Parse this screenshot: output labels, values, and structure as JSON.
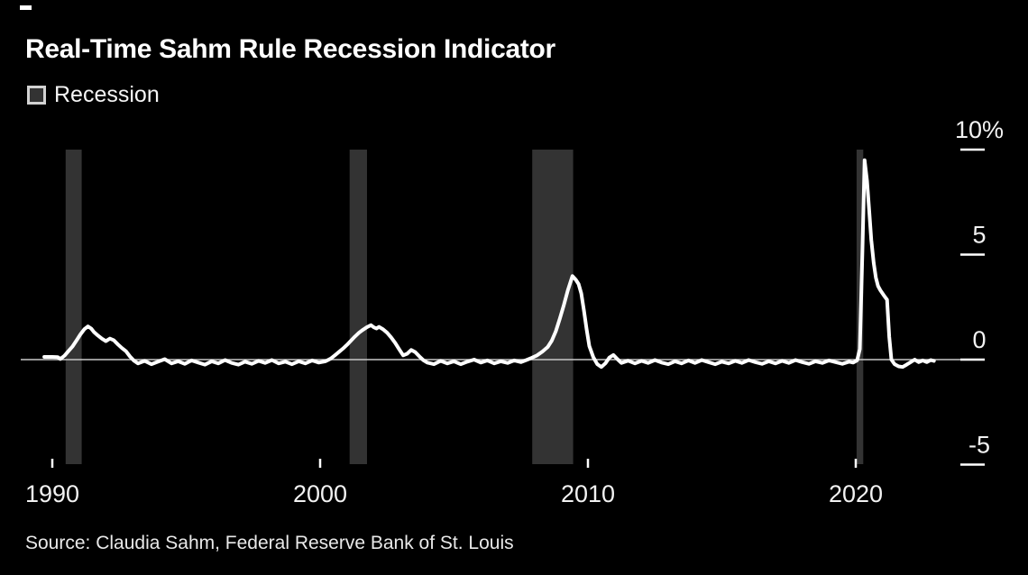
{
  "title": "Real-Time Sahm Rule Recession Indicator",
  "legend": {
    "label": "Recession"
  },
  "source": "Source: Claudia Sahm, Federal Reserve Bank of St. Louis",
  "colors": {
    "background": "#000000",
    "line": "#ffffff",
    "recession_band": "#333333",
    "zero_line": "#c8c8c8",
    "tick": "#ffffff",
    "tick_label": "#f2f2f2",
    "title": "#ffffff",
    "source_text": "#e9e9e9",
    "legend_swatch_border": "#d2d2d2"
  },
  "chart_data": {
    "type": "line",
    "title": "Real-Time Sahm Rule Recession Indicator",
    "xlabel": "",
    "ylabel": "%",
    "legend_entries": [
      "Recession"
    ],
    "x_axis": {
      "range": [
        1988.8,
        2024.9
      ],
      "ticks": [
        {
          "value": 1990,
          "label": "1990"
        },
        {
          "value": 2000,
          "label": "2000"
        },
        {
          "value": 2010,
          "label": "2010"
        },
        {
          "value": 2020,
          "label": "2020"
        }
      ]
    },
    "y_axis": {
      "range": [
        -6.6,
        10
      ],
      "unit": "%",
      "ticks": [
        {
          "value": 10,
          "label": "10%"
        },
        {
          "value": 5,
          "label": "5"
        },
        {
          "value": 0,
          "label": "0"
        },
        {
          "value": -5,
          "label": "-5"
        }
      ]
    },
    "zero_line": true,
    "recession_bands": [
      {
        "start": 1990.5,
        "end": 1991.1
      },
      {
        "start": 2001.1,
        "end": 2001.75
      },
      {
        "start": 2007.92,
        "end": 2009.45
      },
      {
        "start": 2020.03,
        "end": 2020.28
      }
    ],
    "series": [
      {
        "name": "Real-time Sahm rule recession indicator",
        "color": "#ffffff",
        "points": [
          [
            1989.7,
            0.13
          ],
          [
            1990.0,
            0.13
          ],
          [
            1990.2,
            0.12
          ],
          [
            1990.3,
            0.03
          ],
          [
            1990.45,
            0.18
          ],
          [
            1990.6,
            0.4
          ],
          [
            1990.75,
            0.62
          ],
          [
            1990.9,
            0.9
          ],
          [
            1991.05,
            1.2
          ],
          [
            1991.2,
            1.45
          ],
          [
            1991.33,
            1.58
          ],
          [
            1991.45,
            1.48
          ],
          [
            1991.55,
            1.32
          ],
          [
            1991.7,
            1.15
          ],
          [
            1991.85,
            1.0
          ],
          [
            1992.0,
            0.88
          ],
          [
            1992.15,
            1.0
          ],
          [
            1992.3,
            0.92
          ],
          [
            1992.45,
            0.72
          ],
          [
            1992.6,
            0.55
          ],
          [
            1992.75,
            0.4
          ],
          [
            1992.9,
            0.15
          ],
          [
            1993.05,
            -0.05
          ],
          [
            1993.2,
            -0.18
          ],
          [
            1993.45,
            -0.06
          ],
          [
            1993.7,
            -0.22
          ],
          [
            1993.95,
            -0.1
          ],
          [
            1994.2,
            0.02
          ],
          [
            1994.45,
            -0.18
          ],
          [
            1994.7,
            -0.08
          ],
          [
            1994.95,
            -0.2
          ],
          [
            1995.2,
            -0.04
          ],
          [
            1995.45,
            -0.14
          ],
          [
            1995.7,
            -0.24
          ],
          [
            1995.95,
            -0.08
          ],
          [
            1996.2,
            -0.18
          ],
          [
            1996.45,
            -0.02
          ],
          [
            1996.7,
            -0.16
          ],
          [
            1996.95,
            -0.24
          ],
          [
            1997.2,
            -0.1
          ],
          [
            1997.45,
            -0.2
          ],
          [
            1997.7,
            -0.06
          ],
          [
            1997.95,
            -0.16
          ],
          [
            1998.2,
            -0.02
          ],
          [
            1998.45,
            -0.18
          ],
          [
            1998.7,
            -0.1
          ],
          [
            1998.95,
            -0.22
          ],
          [
            1999.2,
            -0.08
          ],
          [
            1999.45,
            -0.18
          ],
          [
            1999.7,
            -0.04
          ],
          [
            1999.95,
            -0.14
          ],
          [
            2000.2,
            -0.08
          ],
          [
            2000.4,
            0.05
          ],
          [
            2000.55,
            0.2
          ],
          [
            2000.7,
            0.36
          ],
          [
            2000.85,
            0.52
          ],
          [
            2001.0,
            0.7
          ],
          [
            2001.15,
            0.9
          ],
          [
            2001.3,
            1.1
          ],
          [
            2001.45,
            1.28
          ],
          [
            2001.6,
            1.42
          ],
          [
            2001.75,
            1.55
          ],
          [
            2001.9,
            1.64
          ],
          [
            2002.0,
            1.54
          ],
          [
            2002.1,
            1.48
          ],
          [
            2002.2,
            1.56
          ],
          [
            2002.35,
            1.44
          ],
          [
            2002.5,
            1.28
          ],
          [
            2002.65,
            1.06
          ],
          [
            2002.8,
            0.8
          ],
          [
            2002.95,
            0.5
          ],
          [
            2003.1,
            0.2
          ],
          [
            2003.25,
            0.28
          ],
          [
            2003.4,
            0.46
          ],
          [
            2003.55,
            0.36
          ],
          [
            2003.7,
            0.16
          ],
          [
            2003.85,
            -0.02
          ],
          [
            2004.0,
            -0.14
          ],
          [
            2004.25,
            -0.22
          ],
          [
            2004.5,
            -0.06
          ],
          [
            2004.75,
            -0.18
          ],
          [
            2005.0,
            -0.08
          ],
          [
            2005.25,
            -0.22
          ],
          [
            2005.5,
            -0.1
          ],
          [
            2005.75,
            0.0
          ],
          [
            2006.0,
            -0.14
          ],
          [
            2006.25,
            -0.04
          ],
          [
            2006.5,
            -0.18
          ],
          [
            2006.75,
            -0.08
          ],
          [
            2007.0,
            -0.16
          ],
          [
            2007.25,
            -0.04
          ],
          [
            2007.5,
            -0.12
          ],
          [
            2007.7,
            -0.02
          ],
          [
            2007.9,
            0.08
          ],
          [
            2008.1,
            0.2
          ],
          [
            2008.3,
            0.38
          ],
          [
            2008.5,
            0.6
          ],
          [
            2008.65,
            0.9
          ],
          [
            2008.8,
            1.35
          ],
          [
            2008.95,
            1.95
          ],
          [
            2009.1,
            2.6
          ],
          [
            2009.25,
            3.3
          ],
          [
            2009.42,
            3.98
          ],
          [
            2009.55,
            3.8
          ],
          [
            2009.65,
            3.6
          ],
          [
            2009.75,
            3.15
          ],
          [
            2009.85,
            2.35
          ],
          [
            2009.95,
            1.45
          ],
          [
            2010.05,
            0.65
          ],
          [
            2010.2,
            0.12
          ],
          [
            2010.35,
            -0.22
          ],
          [
            2010.5,
            -0.35
          ],
          [
            2010.65,
            -0.18
          ],
          [
            2010.8,
            0.1
          ],
          [
            2010.95,
            0.22
          ],
          [
            2011.1,
            0.02
          ],
          [
            2011.25,
            -0.16
          ],
          [
            2011.5,
            -0.05
          ],
          [
            2011.75,
            -0.18
          ],
          [
            2012.0,
            -0.06
          ],
          [
            2012.25,
            -0.16
          ],
          [
            2012.5,
            -0.02
          ],
          [
            2012.75,
            -0.14
          ],
          [
            2013.0,
            -0.22
          ],
          [
            2013.25,
            -0.08
          ],
          [
            2013.5,
            -0.18
          ],
          [
            2013.75,
            -0.04
          ],
          [
            2014.0,
            -0.16
          ],
          [
            2014.25,
            -0.02
          ],
          [
            2014.5,
            -0.12
          ],
          [
            2014.75,
            -0.22
          ],
          [
            2015.0,
            -0.1
          ],
          [
            2015.25,
            -0.18
          ],
          [
            2015.5,
            -0.06
          ],
          [
            2015.75,
            -0.16
          ],
          [
            2016.0,
            -0.02
          ],
          [
            2016.25,
            -0.12
          ],
          [
            2016.5,
            -0.2
          ],
          [
            2016.75,
            -0.08
          ],
          [
            2017.0,
            -0.18
          ],
          [
            2017.25,
            -0.06
          ],
          [
            2017.5,
            -0.16
          ],
          [
            2017.75,
            -0.02
          ],
          [
            2018.0,
            -0.12
          ],
          [
            2018.25,
            -0.2
          ],
          [
            2018.5,
            -0.08
          ],
          [
            2018.75,
            -0.16
          ],
          [
            2019.0,
            -0.04
          ],
          [
            2019.25,
            -0.12
          ],
          [
            2019.5,
            -0.2
          ],
          [
            2019.75,
            -0.1
          ],
          [
            2019.9,
            -0.14
          ],
          [
            2020.05,
            -0.04
          ],
          [
            2020.15,
            0.5
          ],
          [
            2020.25,
            5.2
          ],
          [
            2020.33,
            9.5
          ],
          [
            2020.42,
            8.5
          ],
          [
            2020.5,
            7.1
          ],
          [
            2020.58,
            5.7
          ],
          [
            2020.67,
            4.6
          ],
          [
            2020.75,
            3.9
          ],
          [
            2020.83,
            3.5
          ],
          [
            2020.92,
            3.3
          ],
          [
            2021.0,
            3.15
          ],
          [
            2021.08,
            3.0
          ],
          [
            2021.17,
            2.85
          ],
          [
            2021.25,
            1.1
          ],
          [
            2021.33,
            0.0
          ],
          [
            2021.45,
            -0.22
          ],
          [
            2021.6,
            -0.32
          ],
          [
            2021.75,
            -0.35
          ],
          [
            2021.9,
            -0.24
          ],
          [
            2022.05,
            -0.12
          ],
          [
            2022.2,
            0.0
          ],
          [
            2022.35,
            -0.12
          ],
          [
            2022.5,
            -0.04
          ],
          [
            2022.65,
            -0.12
          ],
          [
            2022.8,
            -0.02
          ],
          [
            2022.92,
            -0.06
          ]
        ]
      }
    ]
  }
}
